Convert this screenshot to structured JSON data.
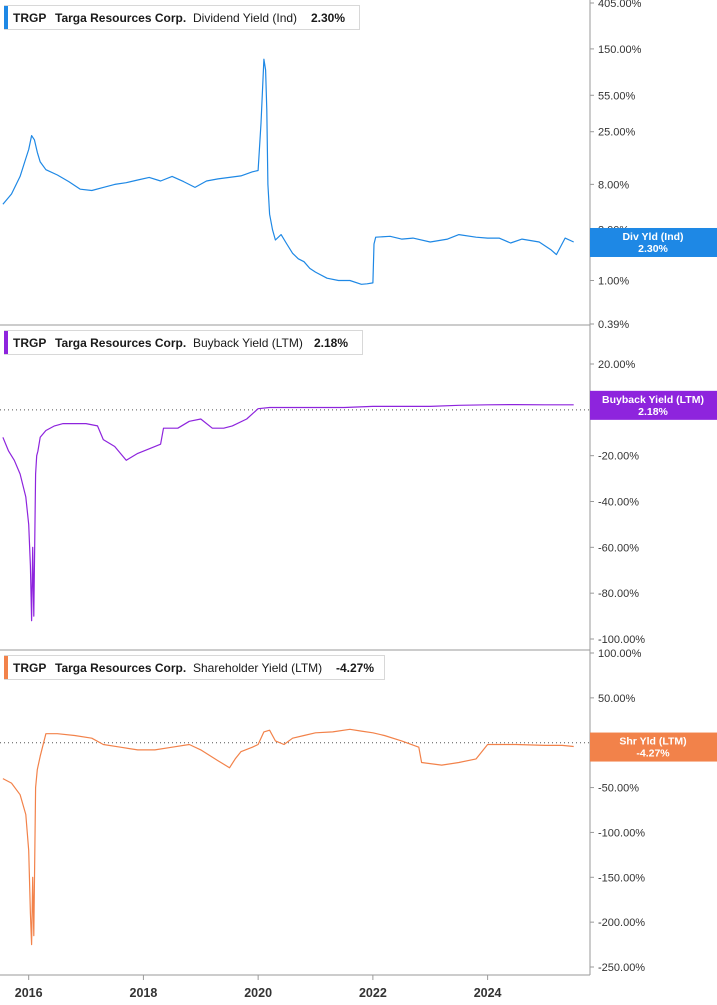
{
  "chart_data": [
    {
      "type": "line",
      "ticker": "TRGP",
      "company": "Targa Resources Corp.",
      "metric": "Dividend Yield (Ind)",
      "current_value": "2.30%",
      "tag": {
        "line1": "Div Yld (Ind)",
        "line2": "2.30%"
      },
      "color": "#1e88e5",
      "scale": "log",
      "y_ticks": [
        405,
        150,
        55,
        25,
        8,
        3,
        1,
        0.39
      ],
      "y_tick_labels": [
        "405.00%",
        "150.00%",
        "55.00%",
        "25.00%",
        "8.00%",
        "3.00%",
        "1.00%",
        "0.39%"
      ],
      "series": [
        {
          "x": [
            2015.55,
            2015.7,
            2015.85,
            2015.95,
            2016.0,
            2016.05,
            2016.1,
            2016.15,
            2016.2,
            2016.3,
            2016.5,
            2016.7,
            2016.9,
            2017.1,
            2017.3,
            2017.5,
            2017.7,
            2017.9,
            2018.1,
            2018.3,
            2018.5,
            2018.7,
            2018.9,
            2019.1,
            2019.3,
            2019.5,
            2019.7,
            2019.9,
            2020.0,
            2020.05,
            2020.1,
            2020.13,
            2020.15,
            2020.17,
            2020.2,
            2020.25,
            2020.3,
            2020.4,
            2020.5,
            2020.6,
            2020.7,
            2020.8,
            2020.9,
            2021.0,
            2021.2,
            2021.4,
            2021.6,
            2021.8,
            2021.9,
            2022.0,
            2022.02,
            2022.05,
            2022.3,
            2022.5,
            2022.7,
            2023.0,
            2023.3,
            2023.5,
            2023.8,
            2024.0,
            2024.2,
            2024.4,
            2024.6,
            2024.9,
            2025.1,
            2025.2,
            2025.35,
            2025.5
          ],
          "y": [
            5.2,
            6.5,
            9.5,
            14,
            17,
            23,
            21,
            16,
            13,
            11,
            9.8,
            8.5,
            7.2,
            7.0,
            7.5,
            8.0,
            8.3,
            8.8,
            9.3,
            8.6,
            9.5,
            8.5,
            7.5,
            8.6,
            9.0,
            9.3,
            9.6,
            10.5,
            10.8,
            30,
            120,
            95,
            40,
            8,
            4.2,
            3.0,
            2.4,
            2.7,
            2.2,
            1.8,
            1.6,
            1.5,
            1.3,
            1.2,
            1.05,
            1.0,
            1.0,
            0.92,
            0.93,
            0.95,
            2.2,
            2.55,
            2.6,
            2.45,
            2.5,
            2.3,
            2.45,
            2.7,
            2.55,
            2.5,
            2.5,
            2.25,
            2.45,
            2.3,
            1.95,
            1.75,
            2.5,
            2.3
          ]
        }
      ],
      "zero_line": false
    },
    {
      "type": "line",
      "ticker": "TRGP",
      "company": "Targa Resources Corp.",
      "metric": "Buyback Yield (LTM)",
      "current_value": "2.18%",
      "tag": {
        "line1": "Buyback Yield (LTM)",
        "line2": "2.18%"
      },
      "color": "#8e24dd",
      "scale": "linear",
      "y_ticks": [
        20,
        0,
        -20,
        -40,
        -60,
        -80,
        -100
      ],
      "y_tick_labels": [
        "20.00%",
        "0.00%",
        "-20.00%",
        "-40.00%",
        "-60.00%",
        "-80.00%",
        "-100.00%"
      ],
      "series": [
        {
          "x": [
            2015.55,
            2015.65,
            2015.75,
            2015.85,
            2015.95,
            2016.0,
            2016.03,
            2016.05,
            2016.07,
            2016.09,
            2016.12,
            2016.14,
            2016.16,
            2016.2,
            2016.3,
            2016.45,
            2016.6,
            2016.8,
            2017.0,
            2017.2,
            2017.3,
            2017.5,
            2017.7,
            2017.9,
            2018.1,
            2018.3,
            2018.35,
            2018.6,
            2018.8,
            2019.0,
            2019.2,
            2019.4,
            2019.55,
            2019.8,
            2020.0,
            2020.2,
            2020.5,
            2021.0,
            2021.5,
            2022.0,
            2022.5,
            2023.0,
            2023.5,
            2024.0,
            2024.5,
            2025.0,
            2025.5
          ],
          "y": [
            -12,
            -18,
            -22,
            -28,
            -38,
            -50,
            -68,
            -92,
            -60,
            -90,
            -28,
            -20,
            -18,
            -12,
            -9,
            -7,
            -6,
            -6,
            -6,
            -7,
            -13,
            -16,
            -22,
            -19,
            -17,
            -15,
            -8,
            -8,
            -5,
            -4,
            -8,
            -8,
            -7,
            -4,
            0.5,
            1,
            1,
            1,
            1,
            1.5,
            1.5,
            1.5,
            2,
            2.2,
            2.3,
            2.2,
            2.18
          ]
        }
      ],
      "zero_line": true
    },
    {
      "type": "line",
      "ticker": "TRGP",
      "company": "Targa Resources Corp.",
      "metric": "Shareholder Yield (LTM)",
      "current_value": "-4.27%",
      "tag": {
        "line1": "Shr Yld (LTM)",
        "line2": "-4.27%"
      },
      "color": "#f2824a",
      "scale": "linear",
      "y_ticks": [
        100,
        50,
        0,
        -50,
        -100,
        -150,
        -200,
        -250
      ],
      "y_tick_labels": [
        "100.00%",
        "50.00%",
        "0.00%",
        "-50.00%",
        "-100.00%",
        "-150.00%",
        "-200.00%",
        "-250.00%"
      ],
      "series": [
        {
          "x": [
            2015.55,
            2015.7,
            2015.85,
            2015.95,
            2016.0,
            2016.03,
            2016.05,
            2016.07,
            2016.09,
            2016.12,
            2016.15,
            2016.2,
            2016.3,
            2016.5,
            2016.8,
            2017.1,
            2017.3,
            2017.6,
            2017.9,
            2018.2,
            2018.5,
            2018.8,
            2019.0,
            2019.3,
            2019.5,
            2019.6,
            2019.7,
            2019.9,
            2020.0,
            2020.1,
            2020.2,
            2020.3,
            2020.45,
            2020.6,
            2020.8,
            2021.0,
            2021.3,
            2021.6,
            2021.8,
            2022.0,
            2022.2,
            2022.5,
            2022.8,
            2022.85,
            2023.2,
            2023.5,
            2023.8,
            2024.0,
            2024.5,
            2025.0,
            2025.3,
            2025.5
          ],
          "y": [
            -40,
            -45,
            -58,
            -80,
            -120,
            -190,
            -225,
            -150,
            -215,
            -50,
            -30,
            -15,
            10,
            10,
            8,
            5,
            -2,
            -5,
            -8,
            -8,
            -5,
            -2,
            -8,
            -20,
            -28,
            -18,
            -10,
            -5,
            -2,
            12,
            14,
            2,
            -2,
            5,
            8,
            11,
            12,
            15,
            13,
            11,
            8,
            2,
            -5,
            -22,
            -25,
            -22,
            -18,
            -2,
            -2,
            -3,
            -3,
            -4.27
          ]
        }
      ],
      "zero_line": true
    }
  ],
  "x_axis": {
    "range": [
      2015.5,
      2025.75
    ],
    "ticks": [
      2016,
      2018,
      2020,
      2022,
      2024
    ],
    "tick_labels": [
      "2016",
      "2018",
      "2020",
      "2022",
      "2024"
    ]
  }
}
